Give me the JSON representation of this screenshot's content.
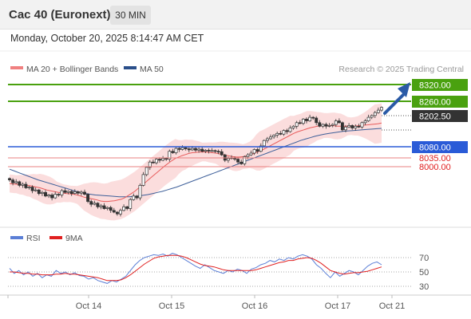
{
  "header": {
    "instrument": "Cac 40 (Euronext)",
    "timeframe": "30 MIN",
    "datetime": "Monday, October 20, 2025 8:14:47 AM CET"
  },
  "chart_data": [
    {
      "type": "candlestick",
      "title": "Cac 40 (Euronext)",
      "legend": [
        {
          "name": "MA 20 + Bollinger Bands",
          "color": "#f08080"
        },
        {
          "name": "MA 50",
          "color": "#2a4f8a"
        }
      ],
      "credit": "Research © 2025 Trading Central",
      "x_ticks": [
        "Oct 14",
        "Oct 15",
        "Oct 16",
        "Oct 17",
        "Oct 21"
      ],
      "price_levels": [
        {
          "label": "8320.00",
          "kind": "resistance",
          "color": "#4aa10f",
          "style": "box"
        },
        {
          "label": "8260.00",
          "kind": "resistance",
          "color": "#4aa10f",
          "style": "box"
        },
        {
          "label": "8202.50",
          "kind": "last",
          "color": "#333333",
          "style": "box"
        },
        {
          "label": "8080.00",
          "kind": "pivot",
          "color": "#2a5bd7",
          "style": "box"
        },
        {
          "label": "8035.00",
          "kind": "support",
          "color": "#e02020",
          "style": "text"
        },
        {
          "label": "8000.00",
          "kind": "support",
          "color": "#e02020",
          "style": "text"
        }
      ],
      "ylim": [
        7870,
        8360
      ],
      "price_close": [
        8000,
        7992,
        7995,
        7985,
        7988,
        7978,
        7980,
        7970,
        7972,
        7962,
        7965,
        7955,
        7958,
        7950,
        7960,
        7958,
        7970,
        7965,
        7968,
        7962,
        7967,
        7963,
        7966,
        7960,
        7940,
        7932,
        7935,
        7925,
        7928,
        7920,
        7923,
        7915,
        7910,
        7905,
        7915,
        7925,
        7920,
        7945,
        7955,
        7950,
        7985,
        8015,
        8035,
        8050,
        8048,
        8058,
        8055,
        8060,
        8058,
        8080,
        8076,
        8088,
        8085,
        8090,
        8087,
        8084,
        8088,
        8083,
        8086,
        8080,
        8083,
        8081,
        8082,
        8080,
        8079,
        8070,
        8055,
        8060,
        8062,
        8058,
        8050,
        8045,
        8065,
        8070,
        8075,
        8085,
        8080,
        8095,
        8110,
        8115,
        8120,
        8125,
        8130,
        8128,
        8138,
        8135,
        8145,
        8150,
        8160,
        8158,
        8170,
        8165,
        8175,
        8173,
        8160,
        8150,
        8155,
        8150,
        8152,
        8155,
        8165,
        8160,
        8140,
        8148,
        8152,
        8145,
        8150,
        8148,
        8160,
        8165,
        8175,
        8180,
        8188,
        8195,
        8202.5
      ],
      "ma20": [
        7990,
        7989,
        7988,
        7987,
        7986,
        7985,
        7984,
        7982,
        7980,
        7978,
        7975,
        7972,
        7970,
        7968,
        7966,
        7964,
        7963,
        7962,
        7961,
        7960,
        7958,
        7955,
        7952,
        7950,
        7948,
        7946,
        7944,
        7941,
        7940,
        7940,
        7941,
        7942,
        7944,
        7946,
        7950,
        7956,
        7962,
        7968,
        7976,
        7984,
        7992,
        8000,
        8008,
        8016,
        8024,
        8032,
        8040,
        8047,
        8054,
        8060,
        8064,
        8068,
        8071,
        8074,
        8076,
        8077,
        8078,
        8078,
        8078,
        8077,
        8076,
        8075,
        8073,
        8071,
        8069,
        8067,
        8065,
        8064,
        8064,
        8065,
        8067,
        8070,
        8073,
        8077,
        8081,
        8085,
        8090,
        8095,
        8100,
        8105,
        8110,
        8115,
        8120,
        8125,
        8130,
        8134,
        8137,
        8140,
        8143,
        8146,
        8148,
        8150,
        8151,
        8152,
        8152,
        8152,
        8151,
        8150,
        8150,
        8150,
        8150,
        8150,
        8150,
        8151,
        8152,
        8153,
        8154,
        8155,
        8156,
        8157,
        8159
      ],
      "ma50": [
        8030,
        8025,
        8020,
        8015,
        8010,
        8005,
        8000,
        7996,
        7992,
        7988,
        7984,
        7980,
        7976,
        7972,
        7968,
        7965,
        7962,
        7960,
        7958,
        7957,
        7956,
        7955,
        7954,
        7953,
        7953,
        7953,
        7954,
        7955,
        7957,
        7959,
        7962,
        7965,
        7968,
        7972,
        7976,
        7980,
        7985,
        7990,
        7995,
        8000,
        8005,
        8010,
        8015,
        8020,
        8025,
        8030,
        8035,
        8040,
        8045,
        8050,
        8055,
        8060,
        8065,
        8070,
        8075,
        8080,
        8085,
        8090,
        8095,
        8100,
        8105,
        8110,
        8114,
        8118,
        8122,
        8125,
        8128,
        8130,
        8132,
        8134,
        8136,
        8137,
        8138,
        8139,
        8140,
        8141,
        8142,
        8143,
        8144
      ],
      "rsi_panel": {
        "legend": [
          {
            "name": "RSI",
            "color": "#5b7fd6"
          },
          {
            "name": "9MA",
            "color": "#e02020"
          }
        ],
        "y_ticks": [
          "70",
          "50",
          "30"
        ],
        "ylim": [
          20,
          80
        ],
        "rsi": [
          55,
          48,
          52,
          46,
          50,
          44,
          48,
          42,
          46,
          44,
          52,
          48,
          50,
          46,
          49,
          45,
          44,
          40,
          42,
          38,
          36,
          34,
          38,
          36,
          40,
          44,
          52,
          60,
          66,
          70,
          72,
          74,
          73,
          75,
          72,
          76,
          74,
          70,
          66,
          62,
          58,
          55,
          60,
          56,
          52,
          50,
          48,
          52,
          50,
          54,
          52,
          48,
          54,
          56,
          60,
          62,
          66,
          64,
          68,
          66,
          70,
          68,
          72,
          74,
          72,
          68,
          60,
          55,
          48,
          42,
          50,
          44,
          48,
          52,
          50,
          46,
          52,
          58,
          62,
          64,
          60
        ],
        "ma9": [
          50,
          50,
          49,
          48,
          48,
          47,
          47,
          46,
          46,
          46,
          47,
          47,
          48,
          47,
          47,
          46,
          45,
          44,
          43,
          42,
          40,
          38,
          38,
          38,
          39,
          42,
          46,
          51,
          56,
          61,
          65,
          69,
          71,
          72,
          73,
          73,
          73,
          72,
          70,
          67,
          64,
          61,
          59,
          58,
          57,
          55,
          53,
          52,
          52,
          52,
          52,
          52,
          52,
          53,
          55,
          57,
          59,
          61,
          63,
          64,
          66,
          66,
          68,
          69,
          70,
          69,
          66,
          62,
          57,
          52,
          50,
          48,
          47,
          48,
          49,
          49,
          50,
          51,
          53,
          55,
          57
        ]
      }
    }
  ]
}
